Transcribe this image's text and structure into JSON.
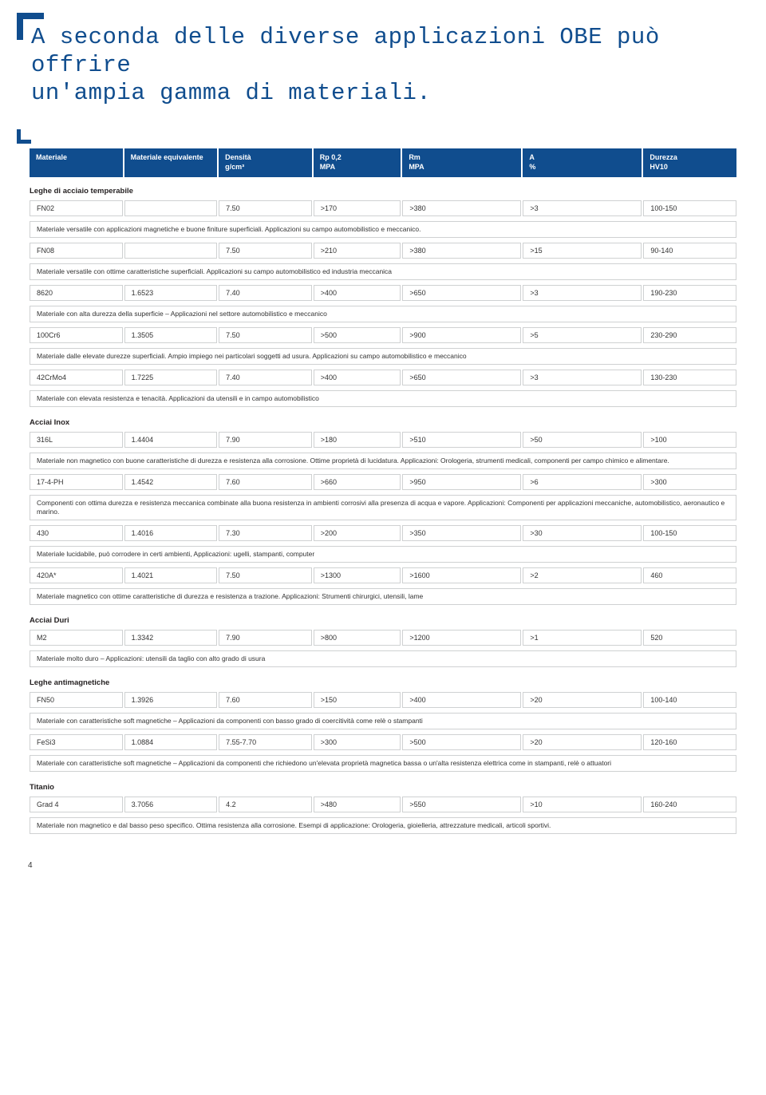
{
  "title_line1": "A seconda delle diverse applicazioni OBE può offrire",
  "title_line2": "un'ampia gamma di materiali.",
  "columns": [
    {
      "h1": "Materiale",
      "h2": ""
    },
    {
      "h1": "Materiale equivalente",
      "h2": ""
    },
    {
      "h1": "Densità",
      "h2": "g/cm³"
    },
    {
      "h1": "Rp 0,2",
      "h2": "MPA"
    },
    {
      "h1": "Rm",
      "h2": "MPA"
    },
    {
      "h1": "A",
      "h2": "%"
    },
    {
      "h1": "Durezza",
      "h2": "HV10"
    }
  ],
  "sections": [
    {
      "title": "Leghe di acciaio temperabile",
      "rows": [
        {
          "cells": [
            "FN02",
            "",
            "7.50",
            ">170",
            ">380",
            ">3",
            "100-150"
          ]
        },
        {
          "desc": "Materiale versatile con applicazioni magnetiche e buone finiture superficiali. Applicazioni su campo automobilistico e meccanico."
        },
        {
          "cells": [
            "FN08",
            "",
            "7.50",
            ">210",
            ">380",
            ">15",
            "90-140"
          ]
        },
        {
          "desc": "Materiale versatile con ottime caratteristiche superficiali. Applicazioni su campo automobilistico ed industria meccanica"
        },
        {
          "cells": [
            "8620",
            "1.6523",
            "7.40",
            ">400",
            ">650",
            ">3",
            "190-230"
          ]
        },
        {
          "desc": "Materiale con alta durezza della superficie – Applicazioni nel settore automobilistico e meccanico"
        },
        {
          "cells": [
            "100Cr6",
            "1.3505",
            "7.50",
            ">500",
            ">900",
            ">5",
            "230-290"
          ]
        },
        {
          "desc": "Materiale dalle elevate durezze superficiali. Ampio impiego nei particolari soggetti ad usura. Applicazioni su campo automobilistico e meccanico"
        },
        {
          "cells": [
            "42CrMo4",
            "1.7225",
            "7.40",
            ">400",
            ">650",
            ">3",
            "130-230"
          ]
        },
        {
          "desc": "Materiale con elevata resistenza e tenacità. Applicazioni da utensili e in campo automobilistico"
        }
      ]
    },
    {
      "title": "Acciai Inox",
      "rows": [
        {
          "cells": [
            "316L",
            "1.4404",
            "7.90",
            ">180",
            ">510",
            ">50",
            ">100"
          ]
        },
        {
          "desc": "Materiale non magnetico con buone caratteristiche di durezza e resistenza alla corrosione. Ottime proprietà di lucidatura. Applicazioni: Orologeria, strumenti medicali, componenti per campo chimico e alimentare."
        },
        {
          "cells": [
            "17-4-PH",
            "1.4542",
            "7.60",
            ">660",
            ">950",
            ">6",
            ">300"
          ]
        },
        {
          "desc": "Componenti con ottima durezza e resistenza meccanica combinate alla buona resistenza in ambienti corrosivi alla presenza di acqua e vapore. Applicazioni: Componenti per applicazioni meccaniche, automobilistico, aeronautico e marino."
        },
        {
          "cells": [
            "430",
            "1.4016",
            "7.30",
            ">200",
            ">350",
            ">30",
            "100-150"
          ]
        },
        {
          "desc": "Materiale lucidabile, può corrodere in certi ambienti, Applicazioni: ugelli, stampanti, computer"
        },
        {
          "cells": [
            "420A*",
            "1.4021",
            "7.50",
            ">1300",
            ">1600",
            ">2",
            "460"
          ]
        },
        {
          "desc": "Materiale magnetico con ottime caratteristiche di durezza e resistenza a trazione. Applicazioni: Strumenti chirurgici, utensili, lame"
        }
      ]
    },
    {
      "title": "Acciai Duri",
      "rows": [
        {
          "cells": [
            "M2",
            "1.3342",
            "7.90",
            ">800",
            ">1200",
            ">1",
            "520"
          ]
        },
        {
          "desc": "Materiale molto duro – Applicazioni: utensili da taglio con alto grado di usura"
        }
      ]
    },
    {
      "title": "Leghe antimagnetiche",
      "rows": [
        {
          "cells": [
            "FN50",
            "1.3926",
            "7.60",
            ">150",
            ">400",
            ">20",
            "100-140"
          ]
        },
        {
          "desc": "Materiale con caratteristiche soft magnetiche – Applicazioni da componenti con basso grado di coercitività come relè o stampanti"
        },
        {
          "cells": [
            "FeSi3",
            "1.0884",
            "7.55-7.70",
            ">300",
            ">500",
            ">20",
            "120-160"
          ]
        },
        {
          "desc": "Materiale con caratteristiche soft magnetiche – Applicazioni da componenti che richiedono un'elevata proprietà magnetica bassa o un'alta resistenza elettrica come in stampanti, relè o attuatori"
        }
      ]
    },
    {
      "title": "Titanio",
      "rows": [
        {
          "cells": [
            "Grad 4",
            "3.7056",
            "4.2",
            ">480",
            ">550",
            ">10",
            "160-240"
          ]
        },
        {
          "desc": "Materiale non magnetico e dal basso peso specifico. Ottima resistenza alla corrosione. Esempi di applicazione: Orologeria, gioielleria, attrezzature medicali, articoli sportivi."
        }
      ]
    }
  ],
  "page_number": "4"
}
